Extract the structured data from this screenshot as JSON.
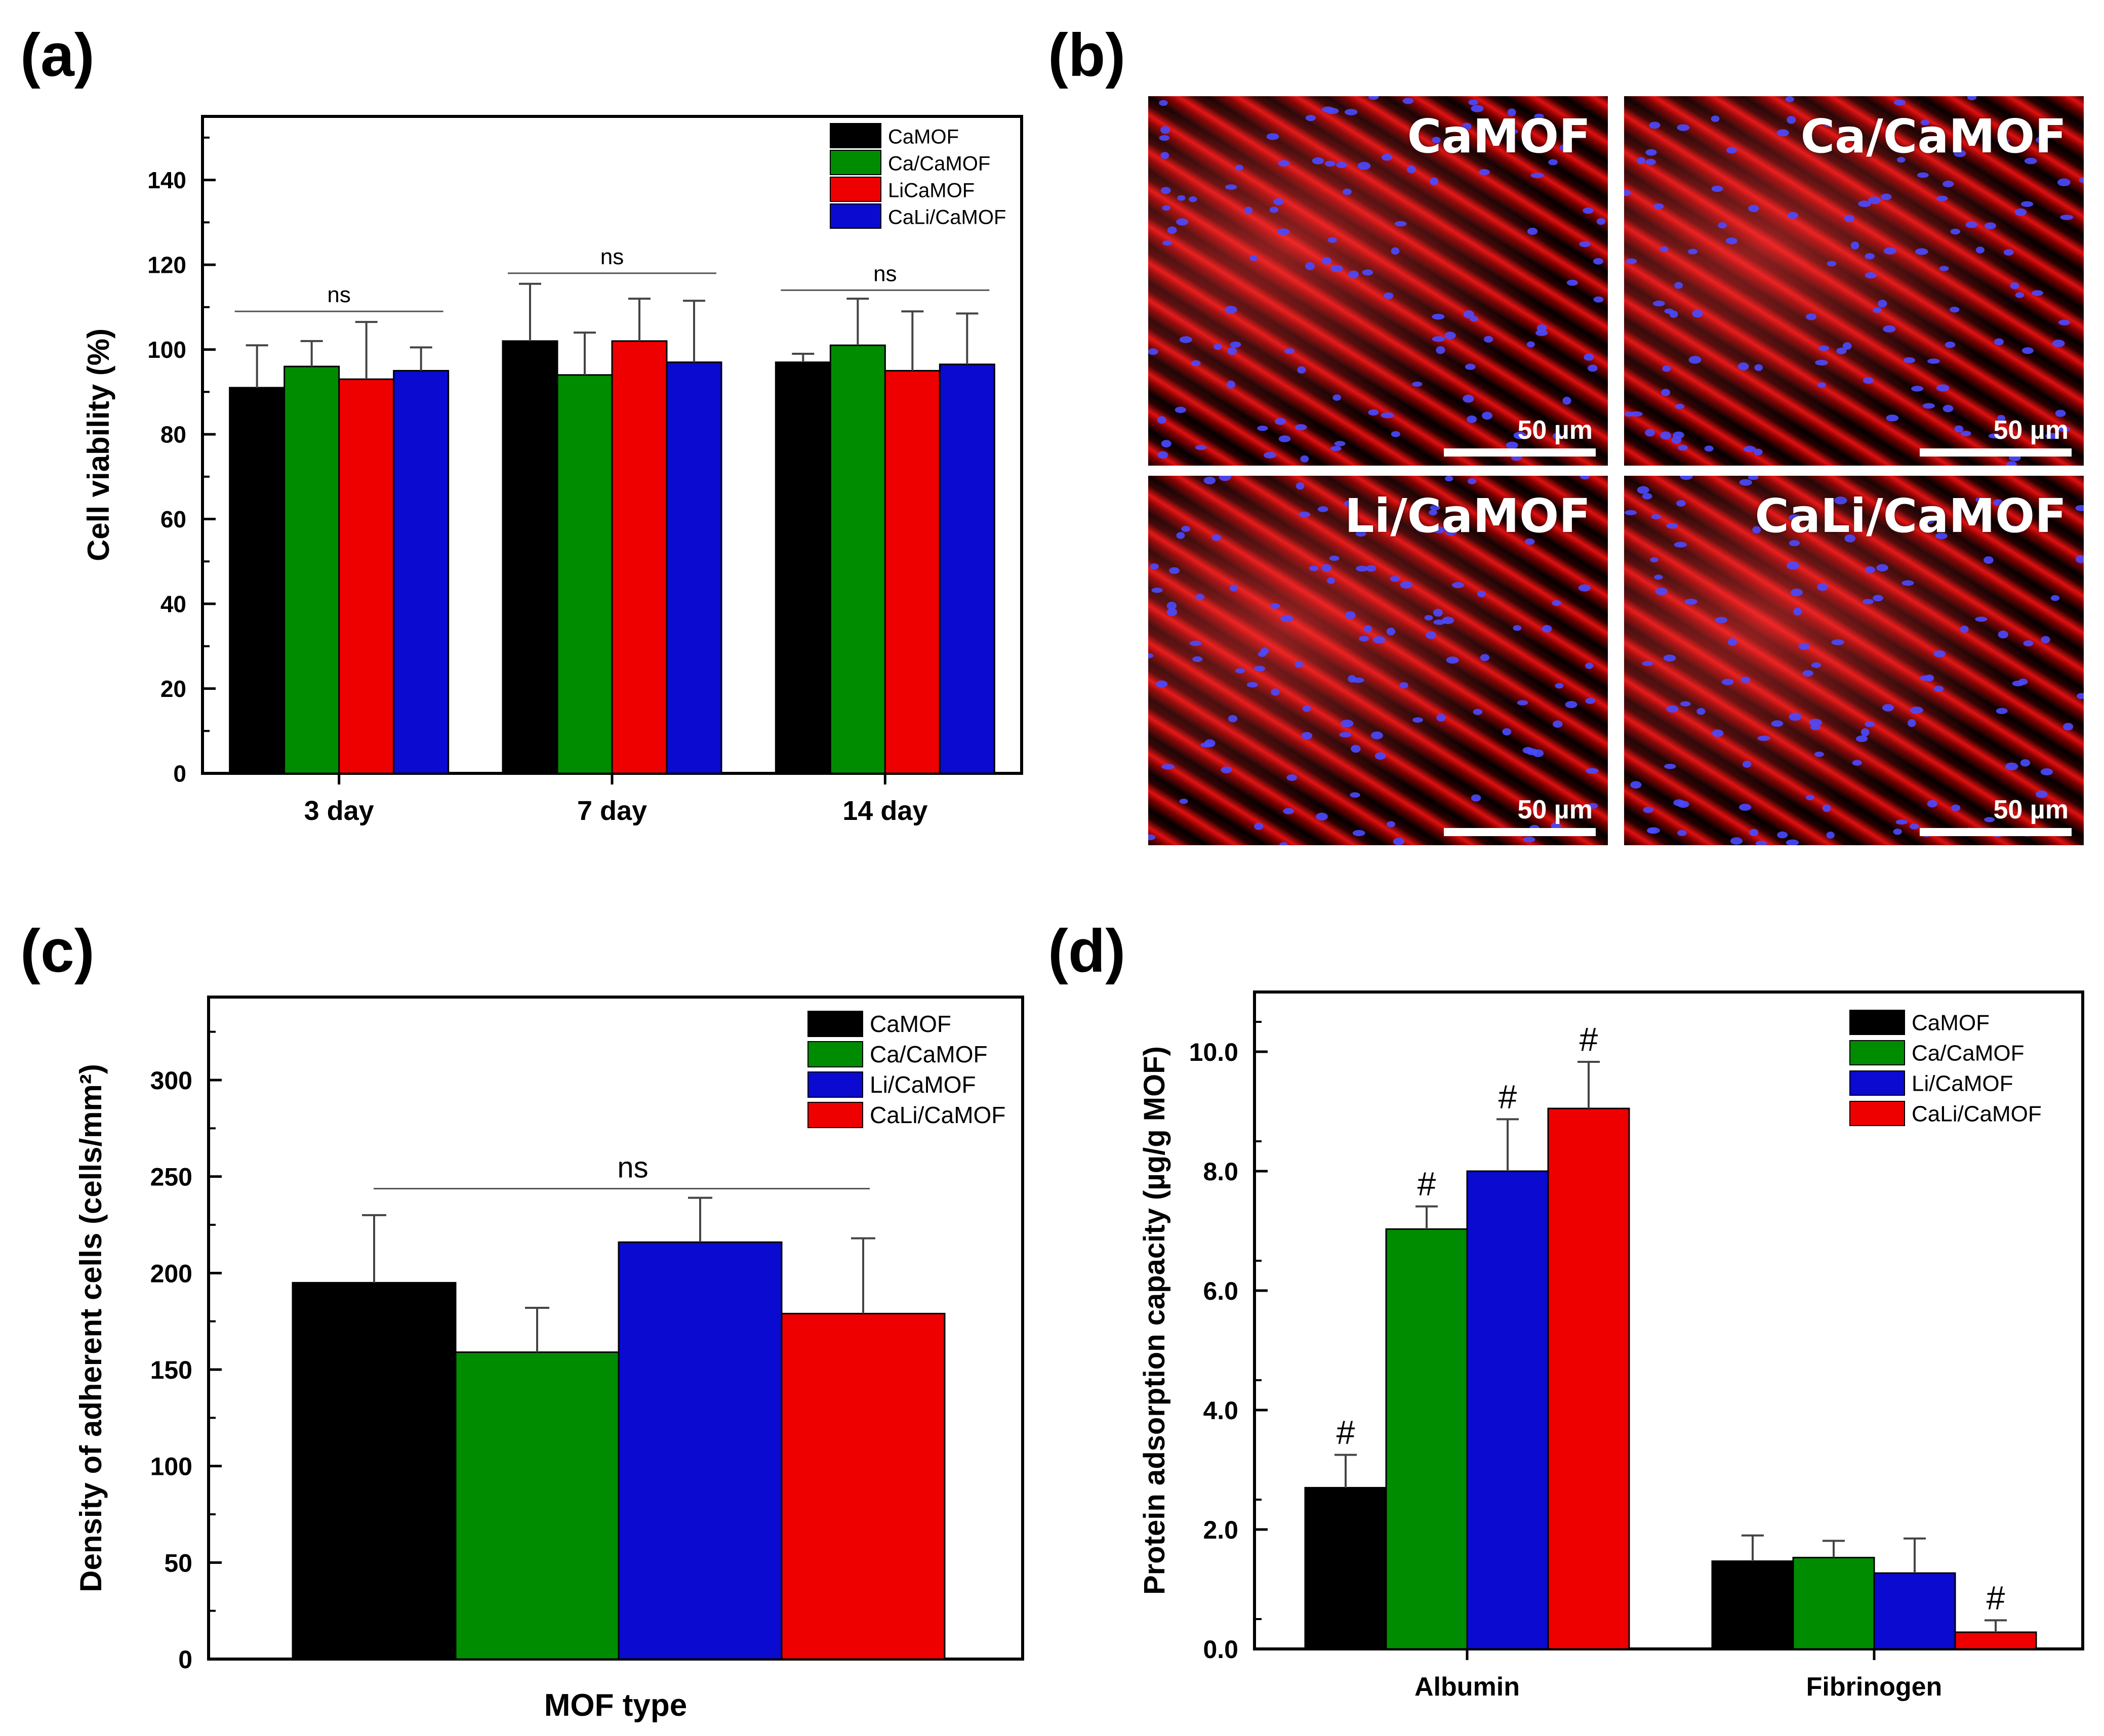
{
  "panels": {
    "a": {
      "label": "(a)"
    },
    "b": {
      "label": "(b)"
    },
    "c": {
      "label": "(c)"
    },
    "d": {
      "label": "(d)"
    }
  },
  "colors": {
    "black": "#000000",
    "green": "#008c00",
    "red": "#ee0000",
    "blue": "#0a0ad0"
  },
  "chart_data": [
    {
      "id": "a",
      "type": "bar",
      "ylabel": "Cell viability (%)",
      "xlabel": "",
      "ylim": [
        0,
        155
      ],
      "yticks": [
        0,
        20,
        40,
        60,
        80,
        100,
        120,
        140
      ],
      "categories": [
        "3 day",
        "7 day",
        "14 day"
      ],
      "series": [
        {
          "name": "CaMOF",
          "color": "#000000",
          "values": [
            91,
            102,
            97
          ],
          "errors": [
            10,
            13.5,
            2
          ]
        },
        {
          "name": "Ca/CaMOF",
          "color": "#008c00",
          "values": [
            96,
            94,
            101
          ],
          "errors": [
            6,
            10,
            11
          ]
        },
        {
          "name": "LiCaMOF",
          "color": "#ee0000",
          "values": [
            93,
            102,
            95
          ],
          "errors": [
            13.5,
            10,
            14
          ]
        },
        {
          "name": "CaLi/CaMOF",
          "color": "#0a0ad0",
          "values": [
            95,
            97,
            96.5
          ],
          "errors": [
            5.5,
            14.5,
            12
          ]
        }
      ],
      "annotations": [
        {
          "text": "ns",
          "group": 0,
          "y": 109
        },
        {
          "text": "ns",
          "group": 1,
          "y": 118
        },
        {
          "text": "ns",
          "group": 2,
          "y": 114
        }
      ]
    },
    {
      "id": "c",
      "type": "bar",
      "ylabel": "Density of adherent cells (cells/mm²)",
      "xlabel": "MOF type",
      "ylim": [
        0,
        343
      ],
      "yticks": [
        0,
        50,
        100,
        150,
        200,
        250,
        300
      ],
      "series": [
        {
          "name": "CaMOF",
          "color": "#000000",
          "value": 195,
          "error": 35
        },
        {
          "name": "Ca/CaMOF",
          "color": "#008c00",
          "value": 159,
          "error": 23
        },
        {
          "name": "Li/CaMOF",
          "color": "#0a0ad0",
          "value": 216,
          "error": 23
        },
        {
          "name": "CaLi/CaMOF",
          "color": "#ee0000",
          "value": 179,
          "error": 39
        }
      ],
      "annotations": [
        {
          "text": "ns",
          "y": 249
        }
      ]
    },
    {
      "id": "d",
      "type": "bar",
      "ylabel": "Protein adsorption capacity (µg/g MOF)",
      "xlabel": "",
      "ylim": [
        0,
        11
      ],
      "yticks": [
        "0.0",
        "2.0",
        "4.0",
        "6.0",
        "8.0",
        "10.0"
      ],
      "categories": [
        "Albumin",
        "Fibrinogen"
      ],
      "series": [
        {
          "name": "CaMOF",
          "color": "#000000",
          "values": [
            2.7,
            1.47
          ],
          "errors": [
            0.55,
            0.43
          ],
          "marks": [
            "#",
            ""
          ]
        },
        {
          "name": "Ca/CaMOF",
          "color": "#008c00",
          "values": [
            7.03,
            1.53
          ],
          "errors": [
            0.38,
            0.28
          ],
          "marks": [
            "#",
            ""
          ]
        },
        {
          "name": "Li/CaMOF",
          "color": "#0a0ad0",
          "values": [
            8.0,
            1.27
          ],
          "errors": [
            0.87,
            0.58
          ],
          "marks": [
            "#",
            ""
          ]
        },
        {
          "name": "CaLi/CaMOF",
          "color": "#ee0000",
          "values": [
            9.05,
            0.28
          ],
          "errors": [
            0.78,
            0.2
          ],
          "marks": [
            "#",
            "#"
          ]
        }
      ]
    }
  ],
  "micrographs": {
    "tiles": [
      {
        "label": "CaMOF",
        "scale": "50 µm"
      },
      {
        "label": "Ca/CaMOF",
        "scale": "50 µm"
      },
      {
        "label": "Li/CaMOF",
        "scale": "50 µm"
      },
      {
        "label": "CaLi/CaMOF",
        "scale": "50 µm"
      }
    ]
  }
}
